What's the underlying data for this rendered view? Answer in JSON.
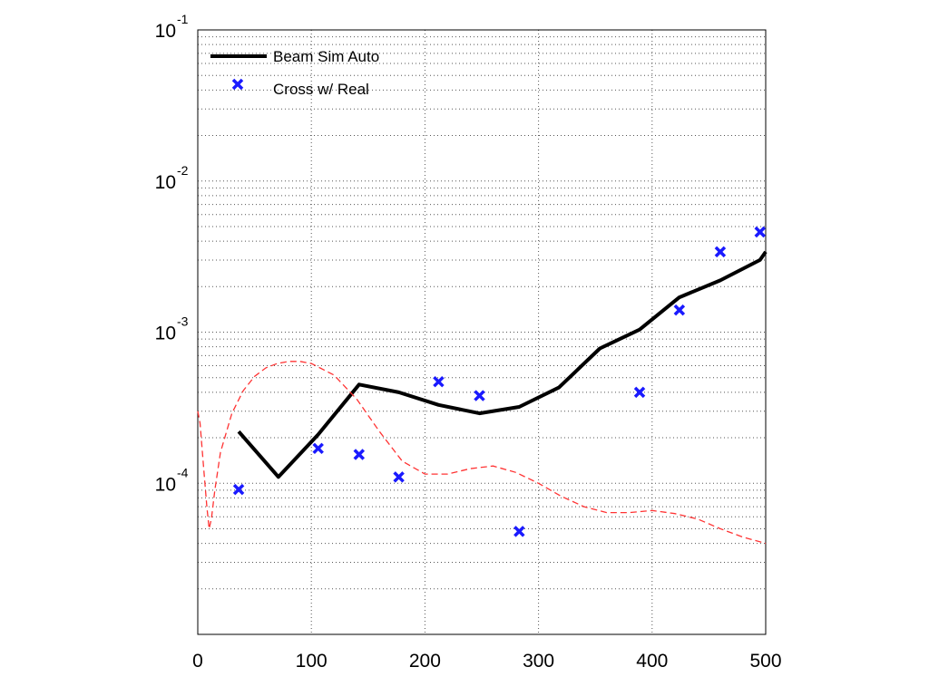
{
  "chart_data": {
    "type": "line",
    "title": "",
    "xlabel": "",
    "ylabel": "",
    "xlim": [
      0,
      500
    ],
    "ylim": [
      1e-05,
      0.1
    ],
    "yscale": "log",
    "grid": true,
    "legend_position": "top-left",
    "x_ticks": [
      {
        "value": 0,
        "label": "0"
      },
      {
        "value": 100,
        "label": "100"
      },
      {
        "value": 200,
        "label": "200"
      },
      {
        "value": 300,
        "label": "300"
      },
      {
        "value": 400,
        "label": "400"
      },
      {
        "value": 500,
        "label": "500"
      }
    ],
    "y_ticks": [
      {
        "value": 0.1,
        "base": "10",
        "exp": "-1"
      },
      {
        "value": 0.01,
        "base": "10",
        "exp": "-2"
      },
      {
        "value": 0.001,
        "base": "10",
        "exp": "-3"
      },
      {
        "value": 0.0001,
        "base": "10",
        "exp": "-4"
      }
    ],
    "series": [
      {
        "name": "Beam Sim Auto",
        "style": "solid-line",
        "color": "#000000",
        "x": [
          36,
          71,
          106,
          142,
          177,
          212,
          248,
          283,
          318,
          354,
          389,
          424,
          460,
          495,
          500
        ],
        "y": [
          0.00022,
          0.00011,
          0.00021,
          0.00045,
          0.0004,
          0.00033,
          0.00029,
          0.00032,
          0.00043,
          0.00078,
          0.00104,
          0.0017,
          0.0022,
          0.003,
          0.0034
        ]
      },
      {
        "name": "Cross w/ Real",
        "style": "marker-x",
        "color": "#1a1aff",
        "x": [
          36,
          106,
          142,
          177,
          212,
          248,
          283,
          389,
          424,
          460,
          495
        ],
        "y": [
          9.1e-05,
          0.00017,
          0.000155,
          0.00011,
          0.00047,
          0.00038,
          4.8e-05,
          0.0004,
          0.0014,
          0.0034,
          0.0046
        ]
      },
      {
        "name": "",
        "style": "dashed-line",
        "color": "#ff3333",
        "x": [
          0,
          2,
          5,
          8,
          10,
          12,
          15,
          20,
          30,
          40,
          50,
          60,
          70,
          80,
          90,
          100,
          120,
          140,
          160,
          180,
          200,
          220,
          240,
          260,
          280,
          300,
          320,
          340,
          360,
          380,
          400,
          420,
          440,
          460,
          480,
          500
        ],
        "y": [
          0.0003,
          0.00025,
          0.00013,
          7e-05,
          5e-05,
          5.8e-05,
          9e-05,
          0.00016,
          0.00029,
          0.00041,
          0.00051,
          0.00058,
          0.00062,
          0.00064,
          0.00064,
          0.00062,
          0.00052,
          0.00036,
          0.00022,
          0.00014,
          0.000115,
          0.000115,
          0.000125,
          0.00013,
          0.000118,
          0.0001,
          8.2e-05,
          7e-05,
          6.4e-05,
          6.4e-05,
          6.6e-05,
          6.3e-05,
          5.8e-05,
          5e-05,
          4.4e-05,
          4e-05
        ]
      }
    ]
  }
}
